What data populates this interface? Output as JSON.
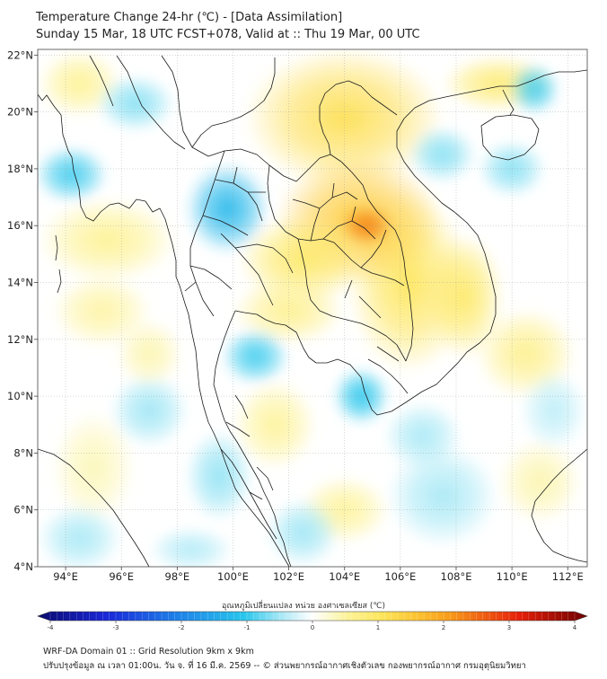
{
  "title_line1": "Temperature Change 24-hr (℃) - [Data Assimilation]",
  "title_line2": "Sunday 15 Mar, 18 UTC FCST+078, Valid at :: Thu 19 Mar, 00 UTC",
  "map": {
    "lon_range": [
      93,
      112.7
    ],
    "lat_range": [
      4,
      22.2
    ],
    "lon_ticks": [
      {
        "value": 94,
        "label": "94°E"
      },
      {
        "value": 96,
        "label": "96°E"
      },
      {
        "value": 98,
        "label": "98°E"
      },
      {
        "value": 100,
        "label": "100°E"
      },
      {
        "value": 102,
        "label": "102°E"
      },
      {
        "value": 104,
        "label": "104°E"
      },
      {
        "value": 106,
        "label": "106°E"
      },
      {
        "value": 108,
        "label": "108°E"
      },
      {
        "value": 110,
        "label": "110°E"
      },
      {
        "value": 112,
        "label": "112°E"
      }
    ],
    "lat_ticks": [
      {
        "value": 4,
        "label": "4°N"
      },
      {
        "value": 6,
        "label": "6°N"
      },
      {
        "value": 8,
        "label": "8°N"
      },
      {
        "value": 10,
        "label": "10°N"
      },
      {
        "value": 12,
        "label": "12°N"
      },
      {
        "value": 14,
        "label": "14°N"
      },
      {
        "value": 16,
        "label": "16°N"
      },
      {
        "value": 18,
        "label": "18°N"
      },
      {
        "value": 20,
        "label": "20°N"
      },
      {
        "value": 22,
        "label": "22°N"
      }
    ],
    "field_blobs": [
      {
        "lon": 104.8,
        "lat": 16.0,
        "value": 2.2,
        "rlon": 0.9,
        "rlat": 0.7
      },
      {
        "lon": 104.5,
        "lat": 16.2,
        "value": 1.4,
        "rlon": 3.0,
        "rlat": 2.3
      },
      {
        "lon": 104.0,
        "lat": 19.8,
        "value": 1.1,
        "rlon": 3.6,
        "rlat": 2.5
      },
      {
        "lon": 102.5,
        "lat": 14.8,
        "value": 0.9,
        "rlon": 2.3,
        "rlat": 1.6
      },
      {
        "lon": 106.3,
        "lat": 14.0,
        "value": 1.0,
        "rlon": 2.2,
        "rlat": 3.2
      },
      {
        "lon": 108.3,
        "lat": 13.5,
        "value": 0.9,
        "rlon": 1.4,
        "rlat": 2.2
      },
      {
        "lon": 102.0,
        "lat": 13.0,
        "value": 0.6,
        "rlon": 2.0,
        "rlat": 1.2
      },
      {
        "lon": 109.5,
        "lat": 21.0,
        "value": 0.8,
        "rlon": 2.0,
        "rlat": 1.0
      },
      {
        "lon": 95.5,
        "lat": 15.5,
        "value": 0.55,
        "rlon": 2.5,
        "rlat": 1.5
      },
      {
        "lon": 94.5,
        "lat": 21.0,
        "value": 0.55,
        "rlon": 1.5,
        "rlat": 1.2
      },
      {
        "lon": 95.3,
        "lat": 13.0,
        "value": 0.45,
        "rlon": 1.8,
        "rlat": 1.3
      },
      {
        "lon": 97.0,
        "lat": 11.5,
        "value": 0.4,
        "rlon": 1.2,
        "rlat": 1.2
      },
      {
        "lon": 101.5,
        "lat": 9.0,
        "value": 0.5,
        "rlon": 1.5,
        "rlat": 1.6
      },
      {
        "lon": 104.0,
        "lat": 6.0,
        "value": 0.5,
        "rlon": 1.6,
        "rlat": 1.2
      },
      {
        "lon": 110.5,
        "lat": 11.5,
        "value": 0.6,
        "rlon": 1.8,
        "rlat": 1.6
      },
      {
        "lon": 111.0,
        "lat": 7.0,
        "value": 0.4,
        "rlon": 1.5,
        "rlat": 1.5
      },
      {
        "lon": 95.0,
        "lat": 7.5,
        "value": 0.35,
        "rlon": 1.5,
        "rlat": 2.0
      },
      {
        "lon": 99.8,
        "lat": 16.6,
        "value": -1.2,
        "rlon": 1.5,
        "rlat": 1.6
      },
      {
        "lon": 94.2,
        "lat": 17.8,
        "value": -0.9,
        "rlon": 1.3,
        "rlat": 1.0
      },
      {
        "lon": 96.5,
        "lat": 20.3,
        "value": -0.6,
        "rlon": 1.4,
        "rlat": 1.0
      },
      {
        "lon": 100.8,
        "lat": 11.4,
        "value": -0.9,
        "rlon": 1.2,
        "rlat": 1.0
      },
      {
        "lon": 104.6,
        "lat": 10.0,
        "value": -1.0,
        "rlon": 1.0,
        "rlat": 1.0
      },
      {
        "lon": 110.8,
        "lat": 20.8,
        "value": -0.9,
        "rlon": 0.9,
        "rlat": 0.9
      },
      {
        "lon": 110.0,
        "lat": 18.0,
        "value": -0.6,
        "rlon": 1.2,
        "rlat": 1.0
      },
      {
        "lon": 107.5,
        "lat": 18.5,
        "value": -0.6,
        "rlon": 1.2,
        "rlat": 1.0
      },
      {
        "lon": 97.0,
        "lat": 9.5,
        "value": -0.5,
        "rlon": 1.4,
        "rlat": 1.3
      },
      {
        "lon": 99.5,
        "lat": 7.2,
        "value": -0.55,
        "rlon": 1.2,
        "rlat": 1.6
      },
      {
        "lon": 102.5,
        "lat": 5.2,
        "value": -0.5,
        "rlon": 1.3,
        "rlat": 1.2
      },
      {
        "lon": 107.5,
        "lat": 6.5,
        "value": -0.45,
        "rlon": 2.0,
        "rlat": 1.8
      },
      {
        "lon": 111.5,
        "lat": 9.5,
        "value": -0.35,
        "rlon": 1.2,
        "rlat": 1.4
      },
      {
        "lon": 94.5,
        "lat": 5.0,
        "value": -0.45,
        "rlon": 1.5,
        "rlat": 1.2
      },
      {
        "lon": 98.5,
        "lat": 4.6,
        "value": -0.4,
        "rlon": 1.5,
        "rlat": 0.8
      },
      {
        "lon": 106.8,
        "lat": 8.6,
        "value": -0.45,
        "rlon": 1.4,
        "rlat": 1.2
      }
    ]
  },
  "colorbar": {
    "title": "อุณหภูมิเปลี่ยนแปลง หน่วย องศาเซลเซียส (℃)",
    "min": -4,
    "max": 4,
    "ticks": [
      {
        "value": -4,
        "label": "-4"
      },
      {
        "value": -3,
        "label": "-3"
      },
      {
        "value": -2,
        "label": "-2"
      },
      {
        "value": -1,
        "label": "-1"
      },
      {
        "value": 0,
        "label": "0"
      },
      {
        "value": 1,
        "label": "1"
      },
      {
        "value": 2,
        "label": "2"
      },
      {
        "value": 3,
        "label": "3"
      },
      {
        "value": 4,
        "label": "4"
      }
    ],
    "stops": [
      {
        "value": -4,
        "color": "#0b0b6e"
      },
      {
        "value": -3,
        "color": "#1a28d8"
      },
      {
        "value": -2,
        "color": "#1e7fe8"
      },
      {
        "value": -1,
        "color": "#28c6ec"
      },
      {
        "value": -0.5,
        "color": "#9fe6f5"
      },
      {
        "value": -0.2,
        "color": "#dcf5fb"
      },
      {
        "value": 0,
        "color": "#ffffff"
      },
      {
        "value": 0.2,
        "color": "#fbfad8"
      },
      {
        "value": 0.5,
        "color": "#fdf39a"
      },
      {
        "value": 1,
        "color": "#fde65c"
      },
      {
        "value": 1.5,
        "color": "#fdc533"
      },
      {
        "value": 2,
        "color": "#f89b1a"
      },
      {
        "value": 3,
        "color": "#e6200a"
      },
      {
        "value": 4,
        "color": "#6e0000"
      }
    ]
  },
  "footer_line1": "WRF-DA Domain 01 :: Grid Resolution 9km x 9km",
  "footer_line2": "ปรับปรุงข้อมูล ณ เวลา 01:00น. วัน จ. ที่ 16 มี.ค. 2569 -- © ส่วนพยากรณ์อากาศเชิงตัวเลข กองพยากรณ์อากาศ กรมอุตุนิยมวิทยา"
}
